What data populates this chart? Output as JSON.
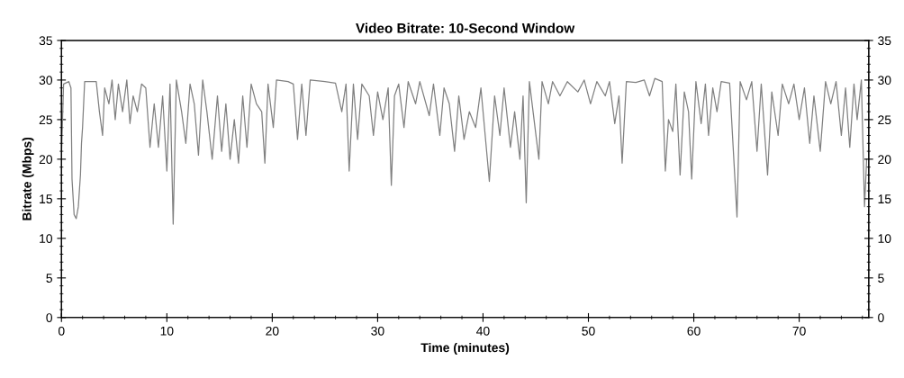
{
  "chart_data": {
    "type": "line",
    "title": "Video Bitrate: 10-Second Window",
    "xlabel": "Time (minutes)",
    "ylabel": "Bitrate (Mbps)",
    "xlim": [
      0,
      76.6
    ],
    "xticks": [
      0,
      10,
      20,
      30,
      40,
      50,
      60,
      70
    ],
    "ylim": [
      0,
      35
    ],
    "yticks": [
      0,
      5,
      10,
      15,
      20,
      25,
      30,
      35
    ],
    "y2lim": [
      0,
      35
    ],
    "y2ticks": [
      0,
      5,
      10,
      15,
      20,
      25,
      30,
      35
    ],
    "grid": false,
    "legend": false,
    "marker": "none",
    "line_style": "solid",
    "series": [
      {
        "color": "#808080",
        "x": [
          0,
          0.2,
          0.7,
          0.9,
          1.0,
          1.2,
          1.4,
          1.6,
          1.8,
          1.9,
          2.0,
          2.2,
          3.3,
          3.6,
          3.9,
          4.1,
          4.5,
          4.8,
          5.1,
          5.4,
          5.8,
          6.2,
          6.5,
          6.8,
          7.2,
          7.6,
          8.0,
          8.4,
          8.8,
          9.2,
          9.6,
          10.0,
          10.3,
          10.6,
          10.9,
          11.4,
          11.8,
          12.2,
          12.6,
          13.0,
          13.4,
          13.8,
          14.3,
          14.8,
          15.2,
          15.6,
          16.0,
          16.4,
          16.8,
          17.2,
          17.6,
          18.0,
          18.5,
          19.0,
          19.3,
          19.6,
          20.1,
          20.4,
          21.5,
          22.0,
          22.4,
          22.8,
          23.2,
          23.6,
          25.0,
          26.0,
          26.6,
          27.0,
          27.3,
          27.7,
          28.1,
          28.5,
          29.2,
          29.6,
          30.0,
          30.5,
          31.0,
          31.3,
          31.6,
          32.0,
          32.5,
          32.9,
          33.6,
          34.0,
          34.9,
          35.3,
          35.9,
          36.3,
          36.8,
          37.3,
          37.7,
          38.2,
          38.7,
          39.3,
          39.8,
          40.6,
          41.1,
          41.6,
          42.0,
          42.6,
          43.0,
          43.5,
          43.8,
          44.1,
          44.4,
          45.3,
          45.6,
          46.2,
          46.6,
          47.3,
          48.0,
          49.0,
          49.6,
          50.2,
          50.8,
          51.6,
          52.0,
          52.5,
          52.9,
          53.2,
          53.6,
          54.5,
          55.3,
          55.8,
          56.3,
          57.0,
          57.3,
          57.6,
          58.0,
          58.3,
          58.7,
          59.1,
          59.5,
          59.8,
          60.2,
          60.7,
          61.1,
          61.4,
          61.8,
          62.2,
          62.6,
          63.4,
          64.1,
          64.4,
          65.0,
          65.5,
          66.0,
          66.4,
          67.0,
          67.4,
          68.0,
          68.4,
          69.0,
          69.5,
          70.0,
          70.5,
          71.0,
          71.4,
          72.0,
          72.5,
          73.0,
          73.5,
          74.0,
          74.4,
          74.8,
          75.2,
          75.5,
          75.9,
          76.2,
          76.4
        ],
        "values": [
          20.5,
          29.5,
          29.8,
          29,
          17.5,
          13,
          12.5,
          14,
          18,
          22,
          24,
          29.8,
          29.8,
          26,
          23,
          29,
          27,
          30,
          25,
          29.5,
          26,
          30,
          24.5,
          28,
          26,
          29.5,
          29,
          21.5,
          27,
          21.5,
          28,
          18.5,
          29.5,
          11.8,
          30,
          26,
          22,
          29.5,
          27,
          20.5,
          30,
          26,
          20,
          28,
          21,
          27,
          20,
          25,
          19.5,
          28,
          21.5,
          29.5,
          27,
          26,
          19.5,
          29.5,
          24,
          30,
          29.8,
          29.5,
          22.5,
          29.5,
          23,
          30,
          29.8,
          29.6,
          26,
          29.5,
          18.5,
          29.5,
          22.5,
          29.5,
          28,
          23,
          28.5,
          25,
          29,
          16.7,
          28,
          29.5,
          24,
          29.8,
          27,
          29.8,
          25.5,
          29.5,
          23,
          29,
          27,
          21,
          28,
          22.5,
          26,
          24,
          29,
          17.2,
          28,
          23,
          29,
          21.5,
          26,
          20,
          28,
          14.5,
          29.8,
          20,
          29.8,
          27,
          29.8,
          28,
          29.8,
          28.5,
          30,
          27,
          29.8,
          28,
          29.8,
          24.5,
          28,
          19.5,
          29.8,
          29.7,
          30,
          28,
          30.2,
          29.8,
          18.5,
          25,
          23.5,
          29.5,
          18,
          28.5,
          26,
          17.5,
          29.8,
          24.5,
          29.5,
          23,
          29,
          26,
          29.8,
          29.6,
          12.7,
          29.8,
          27.5,
          29.8,
          21,
          29.5,
          18,
          28.5,
          23,
          29.5,
          27,
          29.5,
          25,
          29,
          22,
          28,
          21,
          29.8,
          27,
          29.8,
          23,
          29,
          21.5,
          29.5,
          25,
          30,
          14,
          20
        ]
      }
    ]
  }
}
